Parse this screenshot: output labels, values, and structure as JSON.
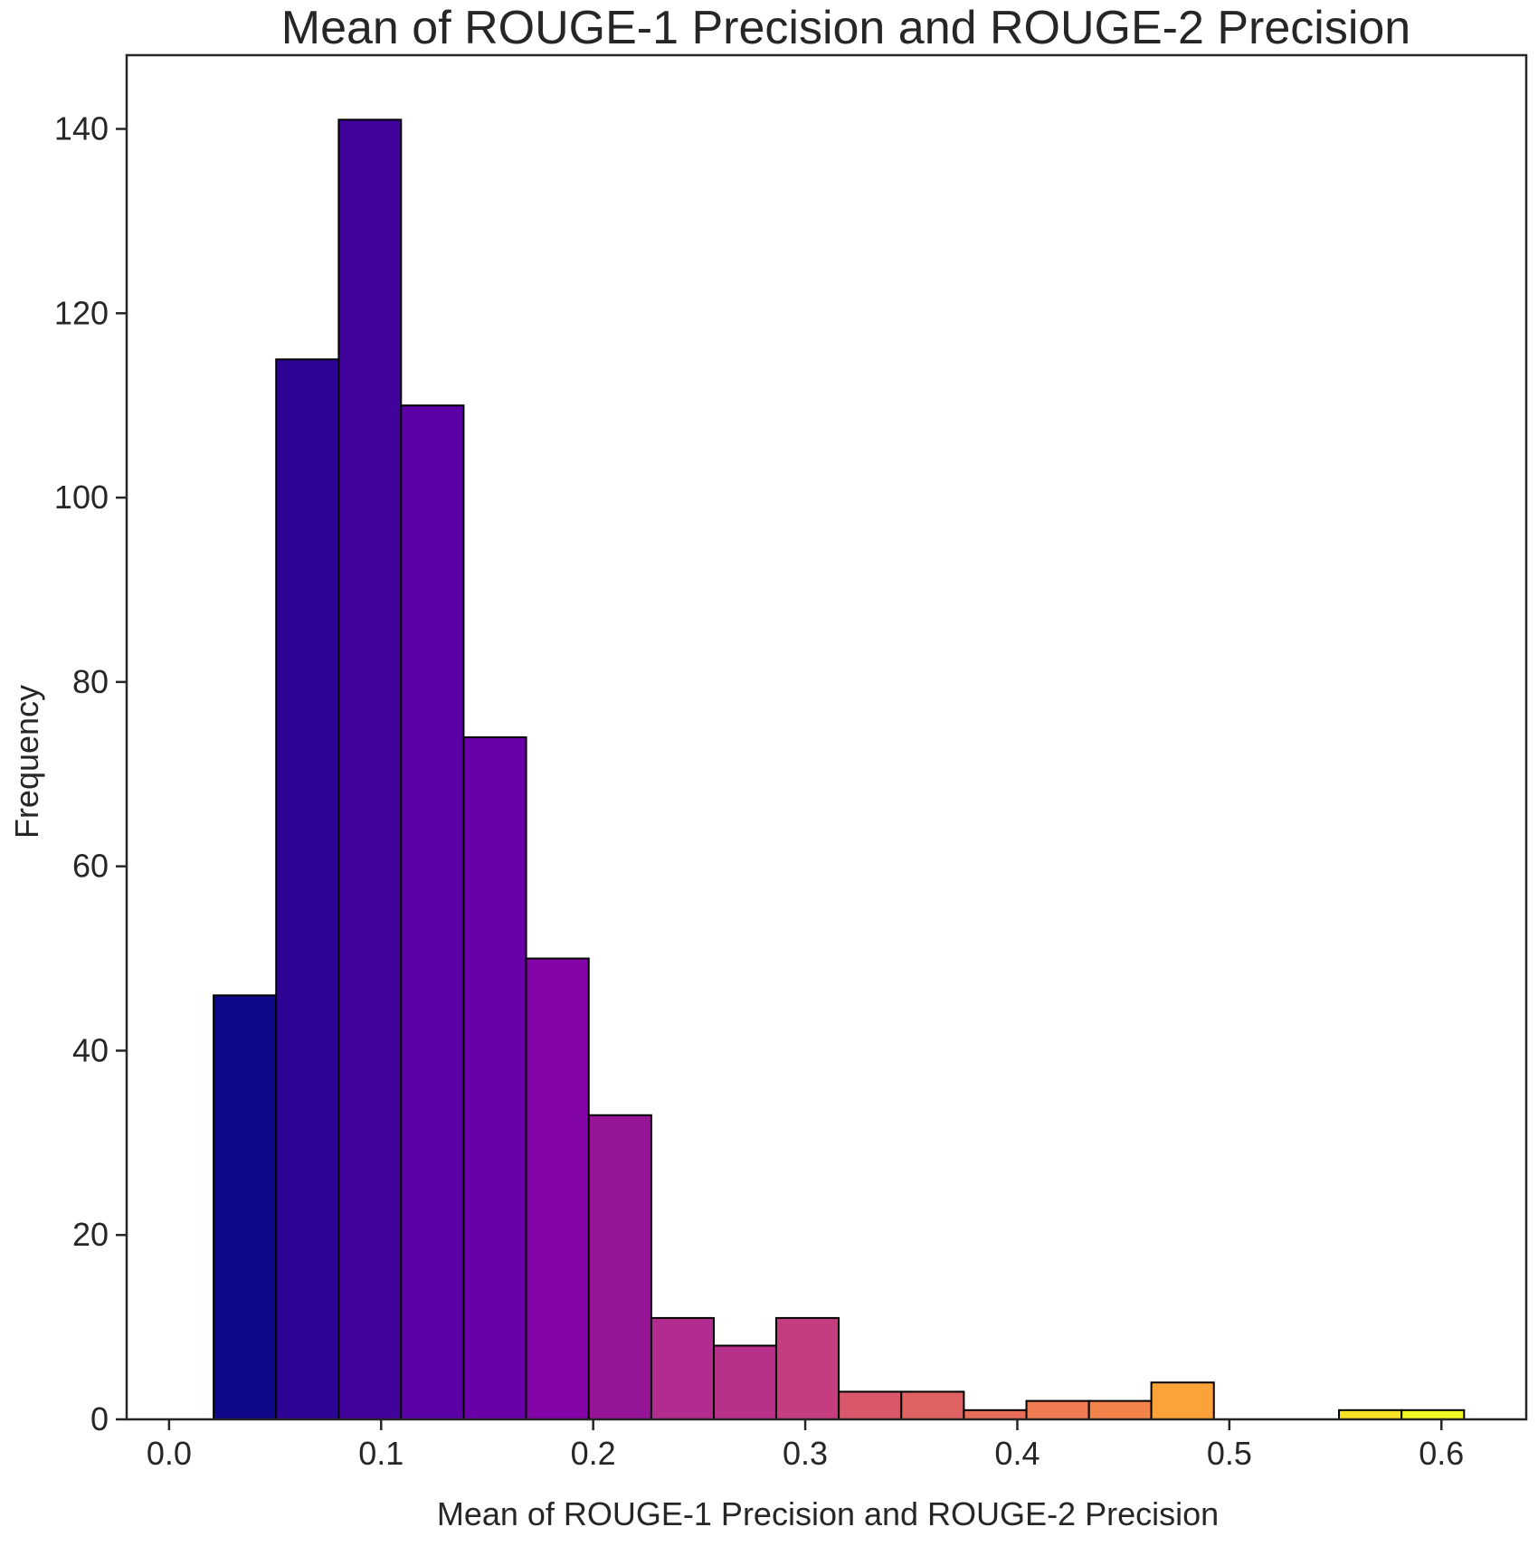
{
  "chart_data": {
    "type": "bar",
    "title": "Mean of ROUGE-1 Precision and ROUGE-2 Precision",
    "xlabel": "Mean of ROUGE-1 Precision and ROUGE-2 Precision",
    "ylabel": "Frequency",
    "xlim": [
      -0.02,
      0.64
    ],
    "ylim": [
      0,
      148
    ],
    "grid": false,
    "legend": "none",
    "bin_edges": [
      0.021,
      0.0505,
      0.08,
      0.1094,
      0.1389,
      0.1684,
      0.1979,
      0.2274,
      0.2569,
      0.2863,
      0.3158,
      0.3453,
      0.3748,
      0.4043,
      0.4338,
      0.4632,
      0.4927,
      0.5222,
      0.5517,
      0.5812,
      0.6107
    ],
    "values": [
      46,
      115,
      141,
      110,
      74,
      50,
      33,
      11,
      8,
      11,
      3,
      3,
      1,
      2,
      2,
      4,
      0,
      0,
      1,
      1
    ],
    "colors": [
      "#0d0887",
      "#2d0594",
      "#42039d",
      "#5c01a6",
      "#6a00a8",
      "#8405a7",
      "#961597",
      "#b22b8f",
      "#b7318a",
      "#c43e7f",
      "#d8576b",
      "#df6263",
      "#e76f5a",
      "#ee7b51",
      "#f2844b",
      "#fba238",
      "#fdb42f",
      "#fcce25",
      "#f7e225",
      "#f0f921"
    ],
    "xticks": [
      {
        "value": 0.0,
        "label": "0.0"
      },
      {
        "value": 0.1,
        "label": "0.1"
      },
      {
        "value": 0.2,
        "label": "0.2"
      },
      {
        "value": 0.3,
        "label": "0.3"
      },
      {
        "value": 0.4,
        "label": "0.4"
      },
      {
        "value": 0.5,
        "label": "0.5"
      },
      {
        "value": 0.6,
        "label": "0.6"
      }
    ],
    "yticks": [
      {
        "value": 0,
        "label": "0"
      },
      {
        "value": 20,
        "label": "20"
      },
      {
        "value": 40,
        "label": "40"
      },
      {
        "value": 60,
        "label": "60"
      },
      {
        "value": 80,
        "label": "80"
      },
      {
        "value": 100,
        "label": "100"
      },
      {
        "value": 120,
        "label": "120"
      },
      {
        "value": 140,
        "label": "140"
      }
    ]
  }
}
